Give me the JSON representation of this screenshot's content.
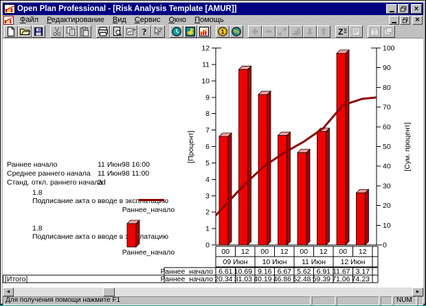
{
  "window": {
    "title": "Open Plan Professional - [Risk Analysis Template [AMUR]]"
  },
  "menu": {
    "items": [
      "Файл",
      "Редактирование",
      "Вид",
      "Сервис",
      "Окно",
      "Помощь"
    ]
  },
  "toolbar": {
    "groups": [
      [
        "new-file-icon",
        "open-folder-icon",
        "save-icon"
      ],
      [
        "cut-icon",
        "copy-icon",
        "paste-icon"
      ],
      [
        "print-icon",
        "print-preview-icon",
        "update-chart-icon",
        "help-icon",
        "context-help-icon"
      ],
      [
        "time-analysis-clock-icon",
        "resource-bird-icon",
        "risk-histogram-icon"
      ],
      [
        "cost-coin-icon",
        "percent-icon"
      ],
      [
        "plus-icon",
        "minus-icon",
        "link-icon",
        "steps-icon",
        "arrow-down-icon",
        "arrow-up-icon"
      ],
      [
        "sort-z-icon",
        "notes-icon"
      ],
      [
        "tile-window-icon",
        "cascade-window-icon"
      ]
    ],
    "disabled": [
      "cut-icon",
      "copy-icon",
      "paste-icon",
      "update-chart-icon",
      "context-help-icon",
      "plus-icon",
      "minus-icon",
      "link-icon",
      "steps-icon",
      "arrow-down-icon",
      "arrow-up-icon",
      "notes-icon",
      "tile-window-icon",
      "cascade-window-icon"
    ]
  },
  "info_panel": {
    "rows": [
      {
        "label": "Раннее начало",
        "value": "11 Июн98 16:00"
      },
      {
        "label": "Среднее раннего начала",
        "value": "11 Июн98 11:00"
      },
      {
        "label": "Станд. откл. раннего начала",
        "value": "2d"
      }
    ]
  },
  "legends": [
    {
      "id": "1.8",
      "activity": "Подписание акта о вводе в эксплатацию",
      "series": "Раннее_начало",
      "symbol": "line",
      "color": "#8b0000"
    },
    {
      "id": "1.8",
      "activity": "Подписание акта о вводе в эксплатацию",
      "series": "Раннее_начало",
      "symbol": "bar",
      "color": "#f10000"
    }
  ],
  "chart_data": {
    "type": "bar",
    "title": "",
    "grid": false,
    "legend_position": "left",
    "left_axis": {
      "label": "[Процент]",
      "lim": [
        0,
        12
      ],
      "ticks": [
        0,
        1,
        2,
        3,
        4,
        5,
        6,
        7,
        8,
        9,
        10,
        11,
        12
      ]
    },
    "right_axis": {
      "label": "[Сум. процент]",
      "lim": [
        0,
        100
      ],
      "ticks": [
        0,
        10,
        20,
        30,
        40,
        50,
        60,
        70,
        80,
        90,
        100
      ]
    },
    "x": {
      "hours": [
        "00",
        "12",
        "00",
        "12",
        "00",
        "12",
        "00",
        "12"
      ],
      "dates": [
        "09 Июн",
        "10 Июн",
        "11 Июн",
        "12 Июн"
      ]
    },
    "series": [
      {
        "name": "Раннее_начало",
        "type": "bar",
        "axis": "left",
        "color": "#f10000",
        "values": [
          6.61,
          10.69,
          9.16,
          6.67,
          5.62,
          6.91,
          11.67,
          3.17
        ]
      },
      {
        "name": "Раннее_начало",
        "type": "line",
        "axis": "right",
        "group": "[Итого]",
        "color": "#8b0000",
        "values": [
          20.34,
          31.03,
          40.19,
          46.86,
          52.48,
          59.39,
          71.06,
          74.23
        ]
      }
    ]
  },
  "status_bar": {
    "message": "Для получения помощи нажмите F1",
    "indicator": "NUM"
  }
}
